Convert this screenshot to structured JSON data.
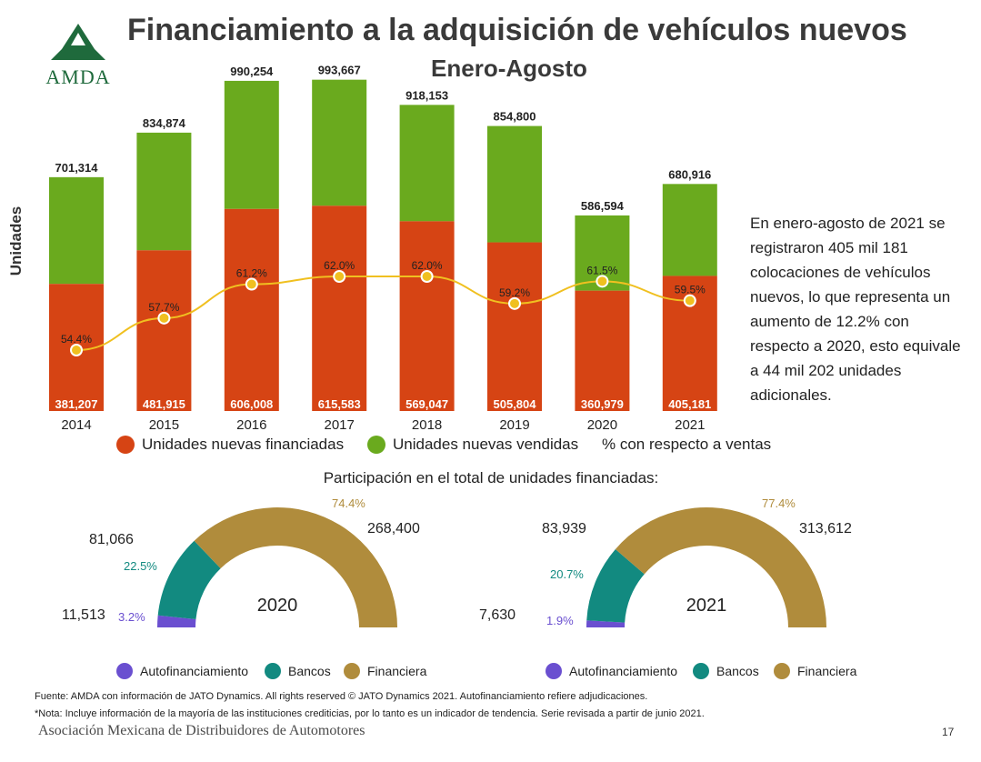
{
  "header": {
    "title": "Financiamiento a la adquisición de vehículos nuevos",
    "subtitle": "Enero-Agosto",
    "logo_text": "AMDA"
  },
  "colors": {
    "financed": "#d64414",
    "sold": "#6aaa1e",
    "line": "#f0c020",
    "autofin": "#6a4fd0",
    "bancos": "#128a80",
    "financiera": "#b08c3c"
  },
  "chart_data": [
    {
      "type": "bar",
      "ylabel": "Unidades",
      "categories": [
        "2014",
        "2015",
        "2016",
        "2017",
        "2018",
        "2019",
        "2020",
        "2021"
      ],
      "series": [
        {
          "name": "Unidades nuevas financiadas",
          "values": [
            381207,
            481915,
            606008,
            615583,
            569047,
            505804,
            360979,
            405181
          ]
        },
        {
          "name": "Unidades nuevas vendidas",
          "values": [
            701314,
            834874,
            990254,
            993667,
            918153,
            854800,
            586594,
            680916
          ]
        },
        {
          "name": "% con respecto a ventas",
          "values": [
            54.4,
            57.7,
            61.2,
            62.0,
            62.0,
            59.2,
            61.5,
            59.5
          ]
        }
      ],
      "value_labels_financed": [
        "381,207",
        "481,915",
        "606,008",
        "615,583",
        "569,047",
        "505,804",
        "360,979",
        "405,181"
      ],
      "value_labels_sold": [
        "701,314",
        "834,874",
        "990,254",
        "993,667",
        "918,153",
        "854,800",
        "586,594",
        "680,916"
      ],
      "pct_labels": [
        "54.4%",
        "57.7%",
        "61.2%",
        "62.0%",
        "62.0%",
        "59.2%",
        "61.5%",
        "59.5%"
      ],
      "ylim": [
        0,
        1050000
      ],
      "legend": [
        "Unidades nuevas financiadas",
        "Unidades nuevas vendidas",
        "% con respecto a ventas"
      ]
    },
    {
      "type": "pie",
      "title": "2020",
      "categories": [
        "Autofinanciamiento",
        "Bancos",
        "Financiera"
      ],
      "values": [
        11513,
        81066,
        268400
      ],
      "value_labels": [
        "11,513",
        "81,066",
        "268,400"
      ],
      "pct_labels": [
        "3.2%",
        "22.5%",
        "74.4%"
      ]
    },
    {
      "type": "pie",
      "title": "2021",
      "categories": [
        "Autofinanciamiento",
        "Bancos",
        "Financiera"
      ],
      "values": [
        7630,
        83939,
        313612
      ],
      "value_labels": [
        "7,630",
        "83,939",
        "313,612"
      ],
      "pct_labels": [
        "1.9%",
        "20.7%",
        "77.4%"
      ]
    }
  ],
  "side_note": "En enero-agosto de 2021 se registraron 405 mil 181 colocaciones de vehículos nuevos, lo que representa un aumento de 12.2% con respecto a 2020, esto equivale a 44 mil 202 unidades adicionales.",
  "donut_section_title": "Participación en el total de unidades financiadas:",
  "footer": {
    "source": "Fuente: AMDA con información de JATO Dynamics. All rights reserved © JATO Dynamics 2021. Autofinanciamiento refiere adjudicaciones.",
    "note": "*Nota: Incluye información de la mayoría de las instituciones crediticias, por lo tanto es un indicador de tendencia. Serie revisada a partir de junio 2021.",
    "org": "Asociación Mexicana de Distribuidores de Automotores",
    "page": "17"
  }
}
